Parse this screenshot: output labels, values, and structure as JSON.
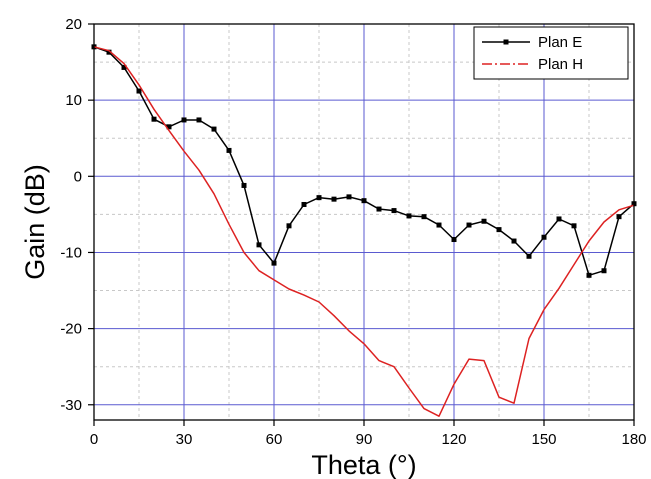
{
  "chart_data": {
    "type": "line",
    "title": "",
    "xlabel": "Theta (°)",
    "ylabel": "Gain (dB)",
    "xlim": [
      0,
      180
    ],
    "ylim": [
      -32,
      20
    ],
    "xticks": [
      0,
      30,
      60,
      90,
      120,
      150,
      180
    ],
    "yticks": [
      20,
      10,
      0,
      -10,
      -20,
      -30
    ],
    "grid": true,
    "legend_position": "top-right",
    "series": [
      {
        "name": "Plan E",
        "color": "#000000",
        "line_style": "solid",
        "marker": "square",
        "x": [
          0,
          5,
          10,
          15,
          20,
          25,
          30,
          35,
          40,
          45,
          50,
          55,
          60,
          65,
          70,
          75,
          80,
          85,
          90,
          95,
          100,
          105,
          110,
          115,
          120,
          125,
          130,
          135,
          140,
          145,
          150,
          155,
          160,
          165,
          170,
          175,
          180
        ],
        "y": [
          17.0,
          16.3,
          14.3,
          11.2,
          7.5,
          6.5,
          7.4,
          7.4,
          6.2,
          3.4,
          -1.2,
          -9.0,
          -11.4,
          -6.5,
          -3.7,
          -2.8,
          -3.0,
          -2.7,
          -3.2,
          -4.3,
          -4.5,
          -5.2,
          -5.3,
          -6.4,
          -8.3,
          -6.4,
          -5.9,
          -7.0,
          -8.5,
          -10.5,
          -8.0,
          -5.6,
          -6.5,
          -13.0,
          -12.4,
          -5.3,
          -3.6
        ]
      },
      {
        "name": "Plan H",
        "color": "#dd2222",
        "line_style": "dash-dot",
        "marker": "none",
        "x": [
          0,
          5,
          10,
          15,
          20,
          25,
          30,
          35,
          40,
          45,
          50,
          55,
          60,
          65,
          70,
          75,
          80,
          85,
          90,
          95,
          100,
          105,
          110,
          115,
          120,
          125,
          130,
          135,
          140,
          145,
          150,
          155,
          160,
          165,
          170,
          175,
          180
        ],
        "y": [
          17.0,
          16.5,
          14.8,
          12.0,
          8.8,
          6.0,
          3.3,
          0.8,
          -2.3,
          -6.3,
          -10.0,
          -12.4,
          -13.6,
          -14.8,
          -15.6,
          -16.5,
          -18.3,
          -20.3,
          -22.0,
          -24.2,
          -25.0,
          -27.8,
          -30.5,
          -31.5,
          -27.3,
          -24.0,
          -24.2,
          -29.0,
          -29.8,
          -21.3,
          -17.5,
          -14.7,
          -11.6,
          -8.5,
          -6.0,
          -4.4,
          -3.8
        ]
      }
    ]
  }
}
